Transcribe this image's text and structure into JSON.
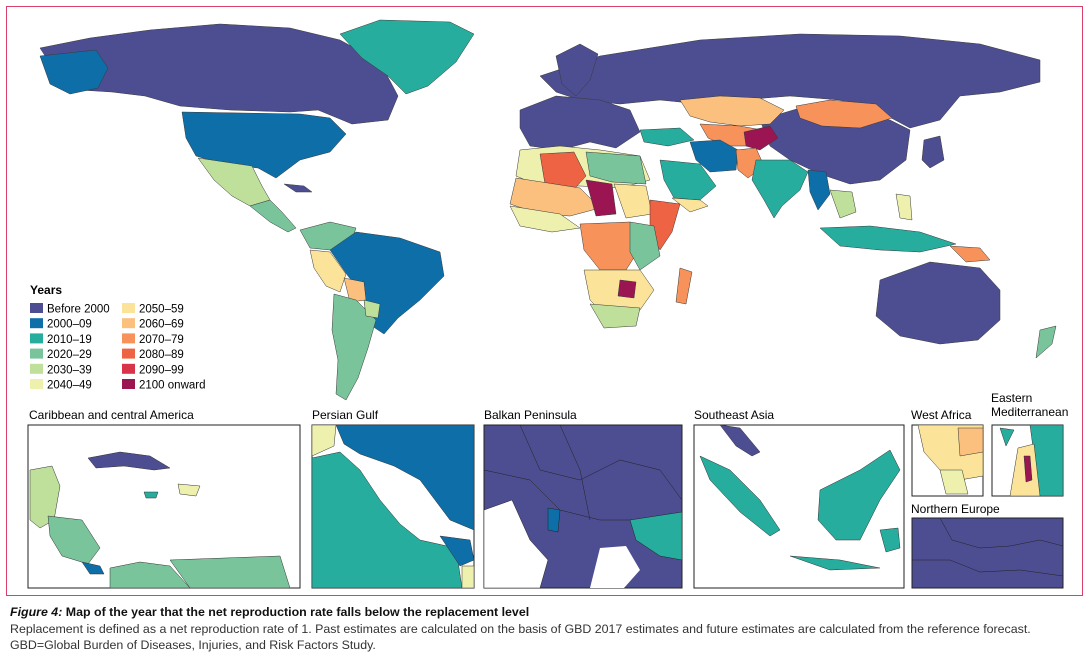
{
  "legend": {
    "title": "Years",
    "items": [
      {
        "label": "Before 2000",
        "color": "#4d4d91"
      },
      {
        "label": "2000–09",
        "color": "#0d6ea8"
      },
      {
        "label": "2010–19",
        "color": "#27ad9e"
      },
      {
        "label": "2020–29",
        "color": "#79c49b"
      },
      {
        "label": "2030–39",
        "color": "#bfe09a"
      },
      {
        "label": "2040–49",
        "color": "#eef1ad"
      },
      {
        "label": "2050–59",
        "color": "#fbe49a"
      },
      {
        "label": "2060–69",
        "color": "#fbc07e"
      },
      {
        "label": "2070–79",
        "color": "#f7925a"
      },
      {
        "label": "2080–89",
        "color": "#ed6343"
      },
      {
        "label": "2090–99",
        "color": "#d9334a"
      },
      {
        "label": "2100 onward",
        "color": "#9a1551"
      }
    ]
  },
  "insets": [
    {
      "id": "caribbean",
      "title": "Caribbean and central America"
    },
    {
      "id": "persian-gulf",
      "title": "Persian Gulf"
    },
    {
      "id": "balkan",
      "title": "Balkan Peninsula"
    },
    {
      "id": "se-asia",
      "title": "Southeast Asia"
    },
    {
      "id": "west-africa",
      "title": "West Africa"
    },
    {
      "id": "east-med",
      "title": "Eastern Mediterranean"
    },
    {
      "id": "n-europe",
      "title": "Northern Europe"
    }
  ],
  "caption": {
    "figure_label": "Figure 4:",
    "title": "Map of the year that the net reproduction rate falls below the replacement level",
    "description": "Replacement is defined as a net reproduction rate of 1. Past estimates are calculated on the basis of GBD 2017 estimates and future estimates are calculated from the reference forecast. GBD=Global Burden of Diseases, Injuries, and Risk Factors Study."
  }
}
